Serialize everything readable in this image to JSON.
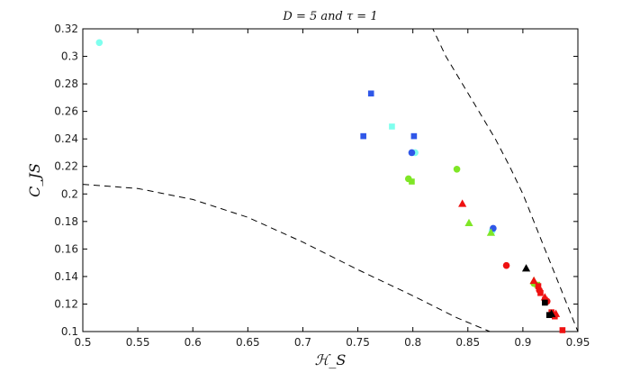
{
  "chart_data": {
    "type": "scatter",
    "title": "D = 5 and τ = 1",
    "xlabel": "ℋ_S",
    "ylabel": "C_JS",
    "xlim": [
      0.5,
      0.95
    ],
    "ylim": [
      0.1,
      0.32
    ],
    "xticks": [
      "0.5",
      "0.55",
      "0.6",
      "0.65",
      "0.7",
      "0.75",
      "0.8",
      "0.85",
      "0.9",
      "0.95"
    ],
    "yticks": [
      "0.1",
      "0.12",
      "0.14",
      "0.16",
      "0.18",
      "0.2",
      "0.22",
      "0.24",
      "0.26",
      "0.28",
      "0.3",
      "0.32"
    ],
    "grid": false,
    "bounds": {
      "upper": [
        [
          0.817,
          0.322
        ],
        [
          0.83,
          0.3
        ],
        [
          0.845,
          0.28
        ],
        [
          0.86,
          0.26
        ],
        [
          0.875,
          0.24
        ],
        [
          0.888,
          0.22
        ],
        [
          0.9,
          0.2
        ],
        [
          0.91,
          0.18
        ],
        [
          0.92,
          0.16
        ],
        [
          0.93,
          0.14
        ],
        [
          0.94,
          0.12
        ],
        [
          0.95,
          0.1
        ]
      ],
      "lower": [
        [
          0.5,
          0.207
        ],
        [
          0.55,
          0.204
        ],
        [
          0.6,
          0.196
        ],
        [
          0.65,
          0.183
        ],
        [
          0.7,
          0.165
        ],
        [
          0.75,
          0.145
        ],
        [
          0.8,
          0.126
        ],
        [
          0.84,
          0.11
        ],
        [
          0.87,
          0.1
        ]
      ]
    },
    "series": [
      {
        "marker": "circle",
        "color": "#7fffee",
        "points": [
          [
            0.515,
            0.31
          ],
          [
            0.802,
            0.23
          ],
          [
            0.872,
            0.173
          ]
        ]
      },
      {
        "marker": "square",
        "color": "#7fffee",
        "points": [
          [
            0.781,
            0.249
          ]
        ]
      },
      {
        "marker": "square",
        "color": "#2f57e8",
        "points": [
          [
            0.762,
            0.273
          ],
          [
            0.755,
            0.242
          ],
          [
            0.801,
            0.242
          ]
        ]
      },
      {
        "marker": "circle",
        "color": "#2f57e8",
        "points": [
          [
            0.799,
            0.23
          ],
          [
            0.873,
            0.175
          ]
        ]
      },
      {
        "marker": "circle",
        "color": "#7fe626",
        "points": [
          [
            0.796,
            0.211
          ],
          [
            0.84,
            0.218
          ],
          [
            0.91,
            0.135
          ]
        ]
      },
      {
        "marker": "square",
        "color": "#7fe626",
        "points": [
          [
            0.799,
            0.209
          ],
          [
            0.913,
            0.134
          ]
        ]
      },
      {
        "marker": "triangle",
        "color": "#7fe626",
        "points": [
          [
            0.851,
            0.179
          ],
          [
            0.871,
            0.172
          ],
          [
            0.91,
            0.137
          ]
        ]
      },
      {
        "marker": "triangle",
        "color": "#ee1111",
        "points": [
          [
            0.845,
            0.193
          ],
          [
            0.91,
            0.137
          ],
          [
            0.92,
            0.125
          ],
          [
            0.93,
            0.113
          ]
        ]
      },
      {
        "marker": "circle",
        "color": "#ee1111",
        "points": [
          [
            0.885,
            0.148
          ],
          [
            0.915,
            0.13
          ],
          [
            0.922,
            0.122
          ]
        ]
      },
      {
        "marker": "square",
        "color": "#ee1111",
        "points": [
          [
            0.914,
            0.133
          ],
          [
            0.916,
            0.128
          ],
          [
            0.92,
            0.123
          ],
          [
            0.926,
            0.114
          ],
          [
            0.929,
            0.111
          ],
          [
            0.936,
            0.101
          ]
        ]
      },
      {
        "marker": "triangle",
        "color": "#000000",
        "points": [
          [
            0.903,
            0.146
          ],
          [
            0.926,
            0.113
          ]
        ]
      },
      {
        "marker": "square",
        "color": "#000000",
        "points": [
          [
            0.92,
            0.121
          ],
          [
            0.924,
            0.112
          ]
        ]
      }
    ]
  }
}
